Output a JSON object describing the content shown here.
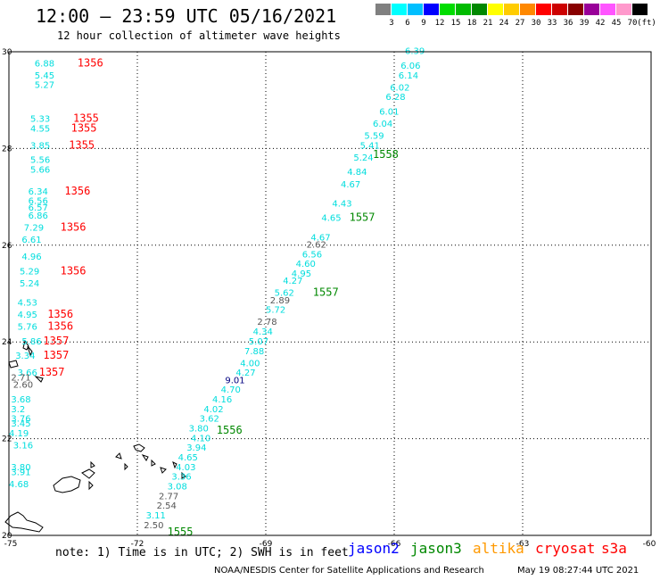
{
  "header": {
    "title": "12:00 – 23:59 UTC 05/16/2021",
    "subtitle": "12 hour collection of altimeter wave heights"
  },
  "colorbar": {
    "unit": "(ft)",
    "colors": [
      "#808080",
      "#00ffff",
      "#00bfff",
      "#0000ff",
      "#00dd00",
      "#00bb00",
      "#008800",
      "#ffff00",
      "#ffcc00",
      "#ff8800",
      "#ff0000",
      "#cc0000",
      "#880000",
      "#990099",
      "#ff55ff",
      "#ff99cc",
      "#000000"
    ],
    "ticks": [
      "3",
      "6",
      "9",
      "12",
      "15",
      "18",
      "21",
      "24",
      "27",
      "30",
      "33",
      "36",
      "39",
      "42",
      "45",
      "70"
    ]
  },
  "map": {
    "lon_range": [
      -75,
      -60
    ],
    "lat_range": [
      20,
      30
    ],
    "lon_ticks": [
      "-75",
      "-72",
      "-69",
      "-66",
      "-63",
      "-60"
    ],
    "lat_ticks": [
      "30",
      "28",
      "26",
      "24",
      "22",
      "20"
    ],
    "grid": "dotted"
  },
  "track_labels": [
    {
      "text": "6.39",
      "lon": -65.75,
      "lat": 29.95,
      "color": "#00dddd"
    },
    {
      "text": "6.06",
      "lon": -65.85,
      "lat": 29.65,
      "color": "#00dddd"
    },
    {
      "text": "6.14",
      "lon": -65.9,
      "lat": 29.45,
      "color": "#00dddd"
    },
    {
      "text": "6.02",
      "lon": -66.1,
      "lat": 29.2,
      "color": "#00dddd"
    },
    {
      "text": "6.28",
      "lon": -66.2,
      "lat": 29.0,
      "color": "#00dddd"
    },
    {
      "text": "6.01",
      "lon": -66.35,
      "lat": 28.7,
      "color": "#00dddd"
    },
    {
      "text": "6.04",
      "lon": -66.5,
      "lat": 28.45,
      "color": "#00dddd"
    },
    {
      "text": "5.59",
      "lon": -66.7,
      "lat": 28.2,
      "color": "#00dddd"
    },
    {
      "text": "5.41",
      "lon": -66.8,
      "lat": 28.0,
      "color": "#00dddd"
    },
    {
      "text": "5.24",
      "lon": -66.95,
      "lat": 27.75,
      "color": "#00dddd"
    },
    {
      "text": "4.84",
      "lon": -67.1,
      "lat": 27.45,
      "color": "#00dddd"
    },
    {
      "text": "4.67",
      "lon": -67.25,
      "lat": 27.2,
      "color": "#00dddd"
    },
    {
      "text": "4.43",
      "lon": -67.45,
      "lat": 26.8,
      "color": "#00dddd"
    },
    {
      "text": "4.65",
      "lon": -67.7,
      "lat": 26.5,
      "color": "#00dddd"
    },
    {
      "text": "4.67",
      "lon": -67.95,
      "lat": 26.1,
      "color": "#00dddd"
    },
    {
      "text": "2.62",
      "lon": -68.05,
      "lat": 25.95,
      "color": "#555555"
    },
    {
      "text": "6.56",
      "lon": -68.15,
      "lat": 25.75,
      "color": "#00dddd"
    },
    {
      "text": "4.60",
      "lon": -68.3,
      "lat": 25.55,
      "color": "#00dddd"
    },
    {
      "text": "4.95",
      "lon": -68.4,
      "lat": 25.35,
      "color": "#00dddd"
    },
    {
      "text": "4.27",
      "lon": -68.6,
      "lat": 25.2,
      "color": "#00dddd"
    },
    {
      "text": "5.62",
      "lon": -68.8,
      "lat": 24.95,
      "color": "#00dddd"
    },
    {
      "text": "2.89",
      "lon": -68.9,
      "lat": 24.8,
      "color": "#555555"
    },
    {
      "text": "5.72",
      "lon": -69.0,
      "lat": 24.6,
      "color": "#00dddd"
    },
    {
      "text": "2.78",
      "lon": -69.2,
      "lat": 24.35,
      "color": "#555555"
    },
    {
      "text": "4.34",
      "lon": -69.3,
      "lat": 24.15,
      "color": "#00dddd"
    },
    {
      "text": "5.07",
      "lon": -69.4,
      "lat": 23.95,
      "color": "#00dddd"
    },
    {
      "text": "7.88",
      "lon": -69.5,
      "lat": 23.75,
      "color": "#00dddd"
    },
    {
      "text": "4.00",
      "lon": -69.6,
      "lat": 23.5,
      "color": "#00dddd"
    },
    {
      "text": "4.27",
      "lon": -69.7,
      "lat": 23.3,
      "color": "#00dddd"
    },
    {
      "text": "9.01",
      "lon": -69.95,
      "lat": 23.15,
      "color": "#000080"
    },
    {
      "text": "4.70",
      "lon": -70.05,
      "lat": 22.95,
      "color": "#00dddd"
    },
    {
      "text": "4.16",
      "lon": -70.25,
      "lat": 22.75,
      "color": "#00dddd"
    },
    {
      "text": "4.02",
      "lon": -70.45,
      "lat": 22.55,
      "color": "#00dddd"
    },
    {
      "text": "3.62",
      "lon": -70.55,
      "lat": 22.35,
      "color": "#00dddd"
    },
    {
      "text": "3.80",
      "lon": -70.8,
      "lat": 22.15,
      "color": "#00dddd"
    },
    {
      "text": "4.10",
      "lon": -70.75,
      "lat": 21.95,
      "color": "#00dddd"
    },
    {
      "text": "3.94",
      "lon": -70.85,
      "lat": 21.75,
      "color": "#00dddd"
    },
    {
      "text": "4.65",
      "lon": -71.05,
      "lat": 21.55,
      "color": "#00dddd"
    },
    {
      "text": "4.03",
      "lon": -71.1,
      "lat": 21.35,
      "color": "#00dddd"
    },
    {
      "text": "3.36",
      "lon": -71.2,
      "lat": 21.15,
      "color": "#00dddd"
    },
    {
      "text": "3.08",
      "lon": -71.3,
      "lat": 20.95,
      "color": "#00dddd"
    },
    {
      "text": "2.77",
      "lon": -71.5,
      "lat": 20.75,
      "color": "#555555"
    },
    {
      "text": "2.54",
      "lon": -71.55,
      "lat": 20.55,
      "color": "#555555"
    },
    {
      "text": "3.11",
      "lon": -71.8,
      "lat": 20.35,
      "color": "#00dddd"
    },
    {
      "text": "2.50",
      "lon": -71.85,
      "lat": 20.15,
      "color": "#555555"
    },
    {
      "text": "6.88",
      "lon": -74.4,
      "lat": 29.7,
      "color": "#00dddd"
    },
    {
      "text": "5.45",
      "lon": -74.4,
      "lat": 29.45,
      "color": "#00dddd"
    },
    {
      "text": "5.27",
      "lon": -74.4,
      "lat": 29.25,
      "color": "#00dddd"
    },
    {
      "text": "5.33",
      "lon": -74.5,
      "lat": 28.55,
      "color": "#00dddd"
    },
    {
      "text": "4.55",
      "lon": -74.5,
      "lat": 28.35,
      "color": "#00dddd"
    },
    {
      "text": "3.85",
      "lon": -74.5,
      "lat": 28.0,
      "color": "#00dddd"
    },
    {
      "text": "5.56",
      "lon": -74.5,
      "lat": 27.7,
      "color": "#00dddd"
    },
    {
      "text": "5.66",
      "lon": -74.5,
      "lat": 27.5,
      "color": "#00dddd"
    },
    {
      "text": "6.34",
      "lon": -74.55,
      "lat": 27.05,
      "color": "#00dddd"
    },
    {
      "text": "6.56",
      "lon": -74.55,
      "lat": 26.85,
      "color": "#00dddd"
    },
    {
      "text": "6.57",
      "lon": -74.55,
      "lat": 26.72,
      "color": "#00dddd"
    },
    {
      "text": "6.86",
      "lon": -74.55,
      "lat": 26.55,
      "color": "#00dddd"
    },
    {
      "text": "7.29",
      "lon": -74.65,
      "lat": 26.3,
      "color": "#00dddd"
    },
    {
      "text": "6.61",
      "lon": -74.7,
      "lat": 26.05,
      "color": "#00dddd"
    },
    {
      "text": "4.96",
      "lon": -74.7,
      "lat": 25.7,
      "color": "#00dddd"
    },
    {
      "text": "5.29",
      "lon": -74.75,
      "lat": 25.4,
      "color": "#00dddd"
    },
    {
      "text": "5.24",
      "lon": -74.75,
      "lat": 25.15,
      "color": "#00dddd"
    },
    {
      "text": "4.53",
      "lon": -74.8,
      "lat": 24.75,
      "color": "#00dddd"
    },
    {
      "text": "4.95",
      "lon": -74.8,
      "lat": 24.5,
      "color": "#00dddd"
    },
    {
      "text": "5.76",
      "lon": -74.8,
      "lat": 24.25,
      "color": "#00dddd"
    },
    {
      "text": "5.86",
      "lon": -74.7,
      "lat": 23.95,
      "color": "#00dddd"
    },
    {
      "text": "3.34",
      "lon": -74.85,
      "lat": 23.65,
      "color": "#00dddd"
    },
    {
      "text": "3.66",
      "lon": -74.8,
      "lat": 23.3,
      "color": "#00dddd"
    },
    {
      "text": "2.71",
      "lon": -74.95,
      "lat": 23.2,
      "color": "#555555"
    },
    {
      "text": "2.60",
      "lon": -74.9,
      "lat": 23.05,
      "color": "#555555"
    },
    {
      "text": "3.68",
      "lon": -74.95,
      "lat": 22.75,
      "color": "#00dddd"
    },
    {
      "text": "3.2",
      "lon": -74.95,
      "lat": 22.55,
      "color": "#00dddd"
    },
    {
      "text": "3.76",
      "lon": -74.95,
      "lat": 22.35,
      "color": "#00dddd"
    },
    {
      "text": "3.45",
      "lon": -74.95,
      "lat": 22.25,
      "color": "#00dddd"
    },
    {
      "text": "4.19",
      "lon": -75.0,
      "lat": 22.05,
      "color": "#00dddd"
    },
    {
      "text": "3.16",
      "lon": -74.9,
      "lat": 21.8,
      "color": "#00dddd"
    },
    {
      "text": "3.80",
      "lon": -74.95,
      "lat": 21.35,
      "color": "#00dddd"
    },
    {
      "text": "3.91",
      "lon": -74.95,
      "lat": 21.25,
      "color": "#00dddd"
    },
    {
      "text": "4.68",
      "lon": -75.0,
      "lat": 21.0,
      "color": "#00dddd"
    }
  ],
  "time_labels": [
    {
      "text": "1356",
      "lon": -73.4,
      "lat": 29.7,
      "color": "#ff0000"
    },
    {
      "text": "1355",
      "lon": -73.5,
      "lat": 28.55,
      "color": "#ff0000"
    },
    {
      "text": "1355",
      "lon": -73.55,
      "lat": 28.35,
      "color": "#ff0000"
    },
    {
      "text": "1355",
      "lon": -73.6,
      "lat": 28.0,
      "color": "#ff0000"
    },
    {
      "text": "1356",
      "lon": -73.7,
      "lat": 27.05,
      "color": "#ff0000"
    },
    {
      "text": "1356",
      "lon": -73.8,
      "lat": 26.3,
      "color": "#ff0000"
    },
    {
      "text": "1356",
      "lon": -73.8,
      "lat": 25.4,
      "color": "#ff0000"
    },
    {
      "text": "1356",
      "lon": -74.1,
      "lat": 24.5,
      "color": "#ff0000"
    },
    {
      "text": "1356",
      "lon": -74.1,
      "lat": 24.25,
      "color": "#ff0000"
    },
    {
      "text": "1357",
      "lon": -74.2,
      "lat": 23.95,
      "color": "#ff0000"
    },
    {
      "text": "1357",
      "lon": -74.2,
      "lat": 23.65,
      "color": "#ff0000"
    },
    {
      "text": "1357",
      "lon": -74.3,
      "lat": 23.3,
      "color": "#ff0000"
    },
    {
      "text": "1558",
      "lon": -66.5,
      "lat": 27.8,
      "color": "#008800"
    },
    {
      "text": "1557",
      "lon": -67.05,
      "lat": 26.5,
      "color": "#008800"
    },
    {
      "text": "1557",
      "lon": -67.9,
      "lat": 24.95,
      "color": "#008800"
    },
    {
      "text": "1556",
      "lon": -70.15,
      "lat": 22.1,
      "color": "#008800"
    },
    {
      "text": "1555",
      "lon": -71.3,
      "lat": 20.0,
      "color": "#008800"
    }
  ],
  "footer": {
    "note": "note: 1) Time is in UTC; 2) SWH is in feet",
    "legend": [
      {
        "label": "jason2",
        "color": "#0000ff"
      },
      {
        "label": "jason3",
        "color": "#008800"
      },
      {
        "label": "altika",
        "color": "#ff9900"
      },
      {
        "label": "cryosat",
        "color": "#ff0000"
      },
      {
        "label": "s3a",
        "color": "#ff0000"
      }
    ],
    "credit": "NOAA/NESDIS Center for Satellite Applications and Research",
    "timestamp": "May 19 08:27:44 UTC 2021"
  }
}
